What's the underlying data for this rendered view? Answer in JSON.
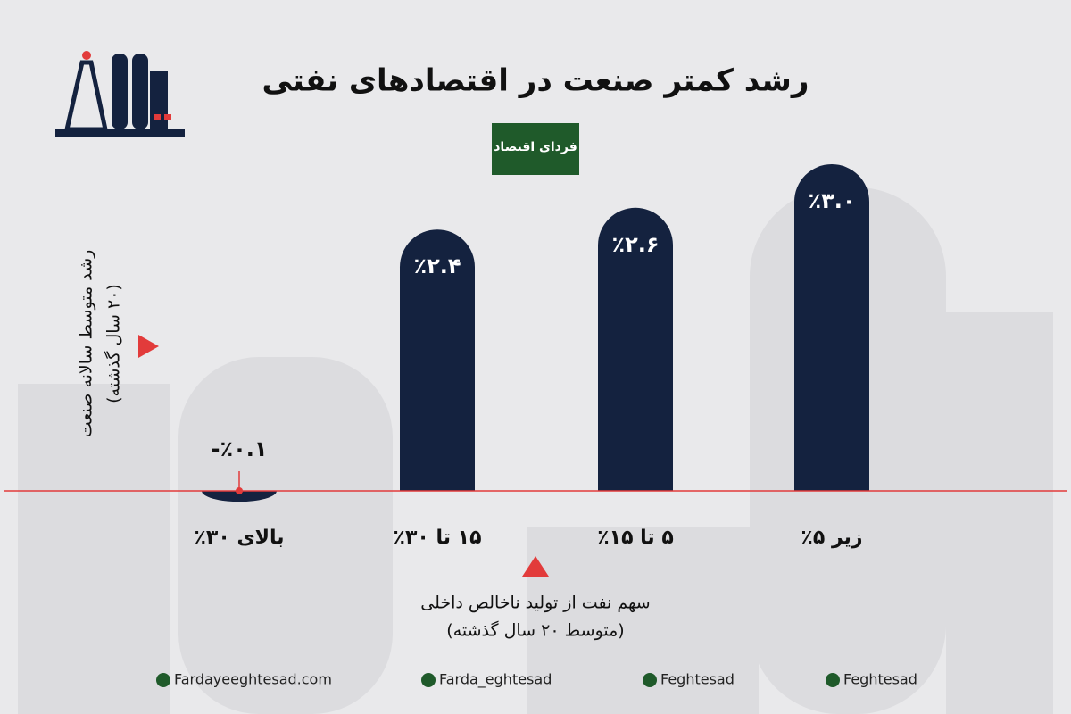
{
  "chart_data": {
    "type": "bar",
    "title": "رشد کمتر صنعت در اقتصادهای نفتی",
    "logo": "فردای اقتصاد",
    "y_label": [
      "رشد متوسط سالانه صنعت",
      "(۲۰ سال گذشته)"
    ],
    "x_label": [
      "سهم نفت از تولید ناخالص داخلی",
      "(متوسط ۲۰ سال گذشته)"
    ],
    "categories": [
      "بالای ۳۰٪",
      "۱۵ تا ۳۰٪",
      "۵ تا ۱۵٪",
      "زیر ۵٪"
    ],
    "values": [
      -0.1,
      2.4,
      2.6,
      3.0
    ],
    "value_labels": [
      "-٪۰.۱",
      "٪۲.۴",
      "٪۲.۶",
      "٪۳.۰"
    ],
    "color": "#14223f",
    "ylim": [
      -0.5,
      3.5
    ],
    "footer": [
      "Fardayeeghtesad.com",
      "Farda_eghtesad",
      "Feghtesad",
      "Feghtesad"
    ]
  }
}
